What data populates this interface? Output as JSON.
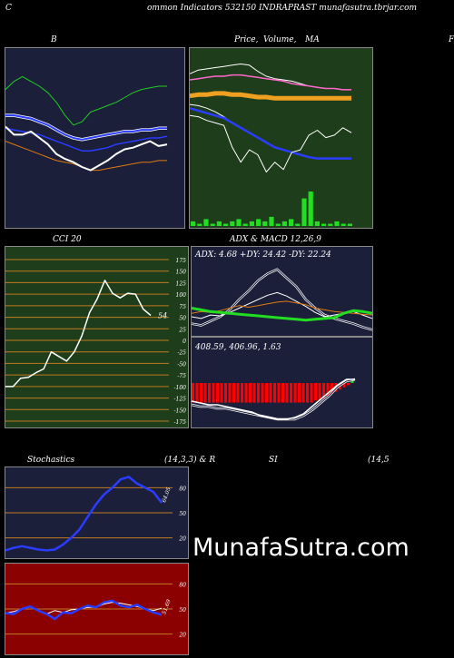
{
  "header": {
    "left": "C",
    "center": "ommon  Indicators 532150  INDRAPRAST munafasutra.tbrjar.com"
  },
  "titles": {
    "bb": "B",
    "price": "Price,",
    "price_overlap": "Volume,",
    "ma": "MA",
    "right_cut": "F",
    "cci": "CCI 20",
    "adx_macd": "ADX  & MACD 12,26,9",
    "stoch": "Stochastics",
    "stoch_params": "(14,3,3) & R",
    "rsi": "SI",
    "rsi_params": "(14,5"
  },
  "watermark": "MunafaSutra.com",
  "colors": {
    "navy": "#1b1f3a",
    "green_bg": "#1e3d1a",
    "red_bg": "#8b0000",
    "blue": "#2a3cff",
    "orange": "#e07a10",
    "lime": "#22dd22"
  },
  "chart_data": [
    {
      "type": "line",
      "panel": "bollinger",
      "series": [
        {
          "values": [
            120,
            125,
            128,
            125,
            122,
            118,
            112,
            104,
            98,
            100,
            106,
            108,
            110,
            112,
            115,
            118,
            120,
            121,
            122,
            122
          ]
        },
        {
          "values": [
            104,
            104,
            103,
            102,
            100,
            98,
            95,
            92,
            90,
            89,
            90,
            91,
            92,
            93,
            94,
            94,
            95,
            95,
            96,
            96
          ]
        },
        {
          "values": [
            88,
            86,
            84,
            82,
            80,
            78,
            76,
            75,
            74,
            72,
            70,
            70,
            71,
            72,
            73,
            74,
            75,
            75,
            76,
            76
          ]
        },
        {
          "values": [
            96,
            95,
            94,
            93,
            92,
            90,
            88,
            86,
            84,
            82,
            82,
            83,
            84,
            86,
            87,
            88,
            89,
            90,
            90,
            91
          ]
        },
        {
          "values": [
            97,
            92,
            92,
            94,
            90,
            86,
            80,
            77,
            75,
            72,
            70,
            73,
            76,
            80,
            83,
            84,
            86,
            88,
            85,
            86
          ]
        }
      ]
    },
    {
      "type": "line",
      "panel": "price_volume_ma",
      "series": [
        {
          "values": [
            80,
            83,
            84,
            85,
            86,
            87,
            88,
            87,
            82,
            78,
            76,
            75,
            74,
            72,
            70,
            69,
            68,
            68,
            67,
            67
          ]
        },
        {
          "values": [
            75,
            76,
            77,
            78,
            78,
            79,
            79,
            78,
            77,
            76,
            75,
            74,
            72,
            71,
            70,
            69,
            68,
            68,
            67,
            67
          ]
        },
        {
          "values": [
            62,
            63,
            63,
            64,
            64,
            63,
            63,
            62,
            61,
            61,
            60,
            60,
            60,
            60,
            60,
            60,
            60,
            60,
            60,
            60
          ]
        },
        {
          "values": [
            55,
            54,
            52,
            49,
            45,
            40,
            36,
            32,
            28,
            24,
            20,
            18,
            16,
            14,
            12,
            11,
            11,
            11,
            11,
            11
          ]
        },
        {
          "values": [
            52,
            50,
            48,
            46,
            44,
            40,
            36,
            32,
            28,
            24,
            20,
            18,
            16,
            14,
            12,
            11,
            11,
            11,
            11,
            11
          ]
        },
        {
          "values": [
            46,
            45,
            42,
            40,
            38,
            20,
            8,
            18,
            14,
            0,
            8,
            2,
            16,
            18,
            30,
            34,
            28,
            30,
            36,
            32
          ]
        }
      ],
      "volume": [
        2,
        1,
        3,
        1,
        2,
        1,
        2,
        3,
        1,
        2,
        3,
        2,
        4,
        1,
        2,
        3,
        1,
        12,
        15,
        2,
        1,
        1,
        2,
        1,
        1
      ]
    },
    {
      "type": "line",
      "panel": "cci",
      "y_ticks": [
        175,
        150,
        125,
        100,
        75,
        50,
        25,
        0,
        -25,
        -50,
        -75,
        -100,
        -125,
        -150,
        -175
      ],
      "ylim": [
        -175,
        175
      ],
      "series": [
        {
          "values": [
            -100,
            -100,
            -82,
            -80,
            -70,
            -62,
            -25,
            -35,
            -45,
            -25,
            10,
            60,
            90,
            130,
            102,
            92,
            102,
            100,
            68,
            54
          ]
        }
      ],
      "last_label": "54"
    },
    {
      "type": "line",
      "panel": "adx",
      "readout": {
        "adx": "ADX: 4.68",
        "plus_di": "+DY: 24.42",
        "minus_di": "-DY: 22.24"
      },
      "series": [
        {
          "values": [
            20,
            18,
            22,
            21,
            25,
            30,
            35,
            40,
            45,
            48,
            44,
            38,
            32,
            25,
            20,
            22,
            24,
            26,
            22,
            18
          ]
        },
        {
          "values": [
            24,
            26,
            25,
            27,
            30,
            33,
            31,
            33,
            35,
            37,
            38,
            36,
            34,
            30,
            28,
            26,
            25,
            24,
            23,
            22
          ]
        },
        {
          "values": [
            30,
            28,
            26,
            25,
            24,
            23,
            22,
            21,
            20,
            19,
            18,
            17,
            16,
            17,
            18,
            19,
            24,
            27,
            26,
            24
          ]
        },
        {
          "values": [
            12,
            10,
            15,
            20,
            28,
            40,
            50,
            62,
            70,
            75,
            65,
            55,
            40,
            30,
            22,
            18,
            15,
            12,
            8,
            5
          ]
        }
      ]
    },
    {
      "type": "bar",
      "panel": "macd",
      "readout": {
        "macd": "408.59",
        "signal": "406.96",
        "hist": "1.63"
      },
      "values": [
        -9,
        -9,
        -9,
        -9,
        -9,
        -9,
        -9,
        -9,
        -9,
        -9,
        -9,
        -9,
        -9,
        -9,
        -9,
        -9,
        -9,
        -9,
        -9,
        -9,
        -9,
        -9,
        -9,
        -9,
        -9,
        -9,
        -9,
        -9,
        -9,
        -9,
        -8,
        -8,
        -7,
        -6,
        -5,
        -4,
        -3,
        -2,
        -1,
        1
      ],
      "series": [
        {
          "values": [
            -10,
            -11,
            -12,
            -12,
            -13,
            -14,
            -15,
            -16,
            -18,
            -19,
            -20,
            -20,
            -19,
            -17,
            -13,
            -9,
            -5,
            -1,
            2,
            2
          ]
        },
        {
          "values": [
            -12,
            -13,
            -13,
            -14,
            -14,
            -15,
            -16,
            -17,
            -18,
            -19,
            -20,
            -20,
            -20,
            -18,
            -15,
            -11,
            -7,
            -2,
            1,
            2
          ]
        }
      ]
    },
    {
      "type": "line",
      "panel": "stochastics",
      "y_ticks": [
        80,
        50,
        20
      ],
      "ylim": [
        0,
        100
      ],
      "series": [
        {
          "values": [
            5,
            8,
            10,
            8,
            6,
            5,
            6,
            12,
            20,
            30,
            45,
            60,
            72,
            80,
            90,
            93,
            85,
            80,
            75,
            62
          ]
        },
        {
          "values": [
            5,
            8,
            10,
            8,
            6,
            5,
            6,
            12,
            20,
            30,
            45,
            60,
            72,
            80,
            90,
            93,
            85,
            80,
            75,
            62
          ]
        }
      ],
      "last_label": "64.05"
    },
    {
      "type": "line",
      "panel": "rsi",
      "y_ticks": [
        80,
        50,
        20
      ],
      "ylim": [
        0,
        100
      ],
      "series": [
        {
          "values": [
            45,
            47,
            50,
            53,
            48,
            44,
            48,
            46,
            49,
            50,
            52,
            52,
            56,
            58,
            57,
            55,
            53,
            50,
            48,
            51
          ]
        },
        {
          "values": [
            45,
            44,
            50,
            53,
            48,
            44,
            38,
            46,
            45,
            50,
            54,
            52,
            58,
            60,
            54,
            52,
            55,
            50,
            46,
            43
          ]
        }
      ],
      "last_label": "51.69"
    }
  ]
}
